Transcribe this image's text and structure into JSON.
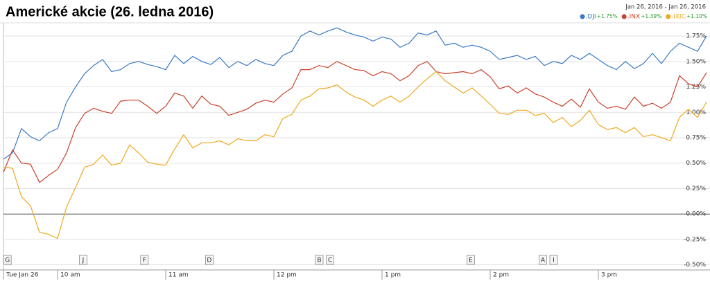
{
  "chart_data": {
    "type": "line",
    "title": "Americké akcie (26. ledna 2016)",
    "date_range": "Jan 26, 2016  -  Jan 26, 2016",
    "x": [
      570,
      575,
      580,
      585,
      590,
      595,
      600,
      605,
      610,
      615,
      620,
      625,
      630,
      635,
      640,
      645,
      650,
      655,
      660,
      665,
      670,
      675,
      680,
      685,
      690,
      695,
      700,
      705,
      710,
      715,
      720,
      725,
      730,
      735,
      740,
      745,
      750,
      755,
      760,
      765,
      770,
      775,
      780,
      785,
      790,
      795,
      800,
      805,
      810,
      815,
      820,
      825,
      830,
      835,
      840,
      845,
      850,
      855,
      860,
      865,
      870,
      875,
      880,
      885,
      890,
      895,
      900,
      905,
      910,
      915,
      920,
      925,
      930,
      935,
      940,
      945,
      950,
      955,
      960
    ],
    "xlim": [
      570,
      960
    ],
    "xticks": [
      {
        "value": 570,
        "label": "Tue Jan 26"
      },
      {
        "value": 600,
        "label": "10 am"
      },
      {
        "value": 660,
        "label": "11 am"
      },
      {
        "value": 720,
        "label": "12 pm"
      },
      {
        "value": 780,
        "label": "1 pm"
      },
      {
        "value": 840,
        "label": "2 pm"
      },
      {
        "value": 900,
        "label": "3 pm"
      }
    ],
    "ylim": [
      -0.55,
      1.88
    ],
    "yticks": [
      {
        "value": -0.5,
        "label": "-0.50%"
      },
      {
        "value": -0.25,
        "label": "-0.25%"
      },
      {
        "value": 0,
        "label": "0.00%"
      },
      {
        "value": 0.25,
        "label": "0.25%"
      },
      {
        "value": 0.5,
        "label": "0.50%"
      },
      {
        "value": 0.75,
        "label": "0.75%"
      },
      {
        "value": 1,
        "label": "1.00%"
      },
      {
        "value": 1.25,
        "label": "1.25%"
      },
      {
        "value": 1.5,
        "label": "1.50%"
      },
      {
        "value": 1.75,
        "label": "1.75%"
      }
    ],
    "grid": true,
    "series": [
      {
        "name": ".DJI",
        "change": "+1.75%",
        "color": "#3a78c4",
        "values": [
          0.54,
          0.6,
          0.84,
          0.76,
          0.72,
          0.8,
          0.84,
          1.1,
          1.25,
          1.38,
          1.46,
          1.52,
          1.4,
          1.42,
          1.48,
          1.5,
          1.47,
          1.45,
          1.42,
          1.56,
          1.48,
          1.55,
          1.5,
          1.47,
          1.54,
          1.44,
          1.5,
          1.46,
          1.52,
          1.48,
          1.46,
          1.56,
          1.6,
          1.75,
          1.8,
          1.76,
          1.8,
          1.83,
          1.79,
          1.76,
          1.74,
          1.7,
          1.74,
          1.72,
          1.64,
          1.68,
          1.78,
          1.76,
          1.8,
          1.66,
          1.68,
          1.64,
          1.66,
          1.64,
          1.6,
          1.52,
          1.54,
          1.56,
          1.52,
          1.55,
          1.46,
          1.5,
          1.48,
          1.56,
          1.52,
          1.58,
          1.52,
          1.46,
          1.42,
          1.5,
          1.43,
          1.48,
          1.58,
          1.48,
          1.6,
          1.68,
          1.64,
          1.6,
          1.75
        ]
      },
      {
        "name": ".INX",
        "change": "+1.39%",
        "color": "#c9412b",
        "values": [
          0.41,
          0.63,
          0.5,
          0.49,
          0.31,
          0.38,
          0.44,
          0.6,
          0.85,
          0.99,
          1.04,
          1.01,
          0.99,
          1.11,
          1.12,
          1.12,
          1.06,
          0.99,
          1.06,
          1.19,
          1.16,
          1.04,
          1.16,
          1.08,
          1.06,
          0.97,
          1.0,
          1.03,
          1.09,
          1.12,
          1.1,
          1.18,
          1.24,
          1.42,
          1.42,
          1.46,
          1.44,
          1.5,
          1.46,
          1.42,
          1.41,
          1.36,
          1.4,
          1.38,
          1.31,
          1.36,
          1.46,
          1.5,
          1.4,
          1.38,
          1.39,
          1.4,
          1.38,
          1.42,
          1.35,
          1.23,
          1.26,
          1.19,
          1.24,
          1.18,
          1.15,
          1.1,
          1.06,
          1.13,
          1.05,
          1.23,
          1.1,
          1.04,
          1.06,
          1.03,
          1.15,
          1.06,
          1.09,
          1.04,
          1.1,
          1.36,
          1.28,
          1.25,
          1.39
        ]
      },
      {
        "name": ".IXIC",
        "change": "+1.10%",
        "color": "#f0a81e",
        "values": [
          0.46,
          0.45,
          0.17,
          0.08,
          -0.18,
          -0.2,
          -0.24,
          0.07,
          0.26,
          0.46,
          0.49,
          0.58,
          0.48,
          0.5,
          0.68,
          0.6,
          0.51,
          0.49,
          0.48,
          0.64,
          0.78,
          0.65,
          0.7,
          0.7,
          0.72,
          0.68,
          0.74,
          0.72,
          0.72,
          0.78,
          0.76,
          0.94,
          0.98,
          1.12,
          1.16,
          1.23,
          1.24,
          1.27,
          1.2,
          1.15,
          1.12,
          1.06,
          1.12,
          1.16,
          1.1,
          1.16,
          1.25,
          1.33,
          1.4,
          1.31,
          1.25,
          1.19,
          1.24,
          1.16,
          1.08,
          0.99,
          0.98,
          1.02,
          1.02,
          0.97,
          0.99,
          0.9,
          0.95,
          0.86,
          0.92,
          1.02,
          0.88,
          0.83,
          0.85,
          0.8,
          0.85,
          0.76,
          0.78,
          0.75,
          0.72,
          0.95,
          1.03,
          0.95,
          1.1
        ]
      }
    ],
    "events": [
      {
        "label": "G",
        "x": 572
      },
      {
        "label": "J",
        "x": 614
      },
      {
        "label": "F",
        "x": 648
      },
      {
        "label": "D",
        "x": 684
      },
      {
        "label": "B",
        "x": 745
      },
      {
        "label": "C",
        "x": 751
      },
      {
        "label": "E",
        "x": 829
      },
      {
        "label": "A",
        "x": 869
      },
      {
        "label": "I",
        "x": 875
      }
    ]
  }
}
